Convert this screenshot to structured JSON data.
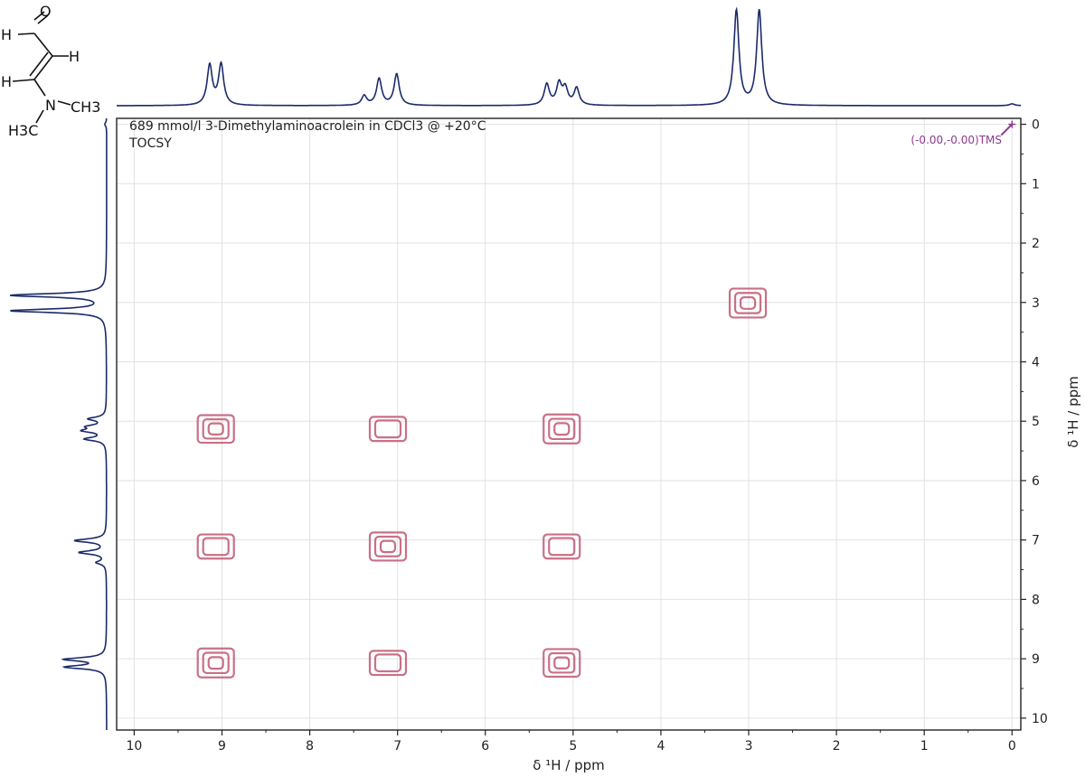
{
  "chart_data": {
    "type": "heatmap",
    "title": "689 mmol/l 3-Dimethylaminoacrolein in CDCl3 @ +20°C",
    "subtitle": "TOCSY",
    "xlabel": "δ ¹H / ppm",
    "ylabel": "δ ¹H / ppm",
    "xlim": [
      10.2,
      -0.1
    ],
    "ylim": [
      -0.1,
      10.2
    ],
    "x_ticks": [
      "10",
      "9",
      "8",
      "7",
      "6",
      "5",
      "4",
      "3",
      "2",
      "1",
      "0"
    ],
    "y_ticks": [
      "0",
      "1",
      "2",
      "3",
      "4",
      "5",
      "6",
      "7",
      "8",
      "9",
      "10"
    ],
    "grid": true,
    "reference_label": "(-0.00,-0.00)TMS",
    "reference_point": [
      0.0,
      0.0
    ],
    "contour_color": "#c2607a",
    "trace_color": "#1b2a6b",
    "reference_color": "#8b3a8f",
    "proton_peaks": [
      {
        "ppm": 9.14,
        "height": 0.42
      },
      {
        "ppm": 9.01,
        "height": 0.43
      },
      {
        "ppm": 7.38,
        "height": 0.1
      },
      {
        "ppm": 7.21,
        "height": 0.28
      },
      {
        "ppm": 7.01,
        "height": 0.33
      },
      {
        "ppm": 5.3,
        "height": 0.22
      },
      {
        "ppm": 5.16,
        "height": 0.22
      },
      {
        "ppm": 5.09,
        "height": 0.17
      },
      {
        "ppm": 4.96,
        "height": 0.18
      },
      {
        "ppm": 3.14,
        "height": 1.0
      },
      {
        "ppm": 2.88,
        "height": 1.0
      },
      {
        "ppm": 0.0,
        "height": 0.02
      }
    ],
    "cross_peaks": [
      {
        "x": 9.07,
        "y": 9.07,
        "intensity": 1.0
      },
      {
        "x": 9.07,
        "y": 7.11,
        "intensity": 0.45
      },
      {
        "x": 9.07,
        "y": 5.13,
        "intensity": 0.85
      },
      {
        "x": 7.11,
        "y": 9.07,
        "intensity": 0.45
      },
      {
        "x": 7.11,
        "y": 7.11,
        "intensity": 0.9
      },
      {
        "x": 7.11,
        "y": 5.13,
        "intensity": 0.45
      },
      {
        "x": 5.13,
        "y": 9.07,
        "intensity": 0.85
      },
      {
        "x": 5.13,
        "y": 7.11,
        "intensity": 0.45
      },
      {
        "x": 5.13,
        "y": 5.13,
        "intensity": 1.0
      },
      {
        "x": 3.01,
        "y": 3.01,
        "intensity": 1.0
      }
    ]
  },
  "molecule": {
    "atoms": [
      "O",
      "H",
      "H",
      "H",
      "N",
      "CH3",
      "H3C"
    ]
  }
}
